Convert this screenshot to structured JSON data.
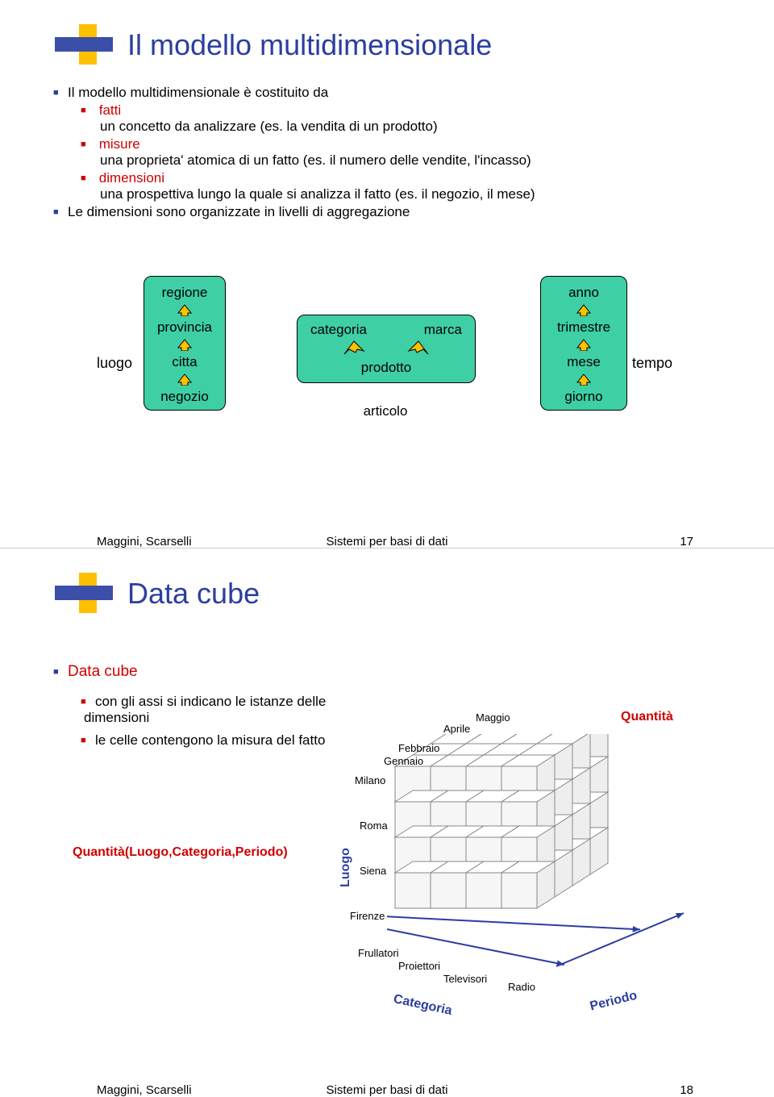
{
  "footer": {
    "left": "Maggini, Scarselli",
    "center": "Sistemi per basi di dati"
  },
  "slide1": {
    "title": "Il modello multidimensionale",
    "page": "17",
    "intro": "Il modello multidimensionale è costituito da",
    "items": {
      "fatti": {
        "label": "fatti",
        "desc": "un concetto da analizzare (es. la vendita di un prodotto)"
      },
      "misure": {
        "label": "misure",
        "desc": "una proprieta' atomica di un fatto (es. il numero delle vendite, l'incasso)"
      },
      "dimensioni": {
        "label": "dimensioni",
        "desc": "una prospettiva lungo la  quale si analizza il fatto (es. il negozio, il mese)"
      }
    },
    "levels_line": "Le dimensioni sono organizzate in livelli di aggregazione",
    "dim_luogo": {
      "sidelabel": "luogo",
      "levels": [
        "regione",
        "provincia",
        "citta",
        "negozio"
      ]
    },
    "dim_prod": {
      "top_left": "categoria",
      "top_right": "marca",
      "bottom": "prodotto",
      "below": "articolo"
    },
    "dim_tempo": {
      "sidelabel": "tempo",
      "levels": [
        "anno",
        "trimestre",
        "mese",
        "giorno"
      ]
    }
  },
  "slide2": {
    "title": "Data cube",
    "page": "18",
    "heading": "Data cube",
    "p1": "con gli assi si indicano le istanze delle  dimensioni",
    "p2": "le celle contengono la misura del fatto",
    "fn_label": "Quantità(Luogo,Categoria,Periodo)",
    "qty": "Quantità",
    "axes": {
      "luogo": "Luogo",
      "categoria": "Categoria",
      "periodo": "Periodo"
    },
    "months": [
      "Gennaio",
      "Febbraio",
      "Aprile",
      "Maggio"
    ],
    "cities": [
      "Milano",
      "Roma",
      "Siena",
      "Firenze"
    ],
    "cats": [
      "Frullatori",
      "Proiettori",
      "Televisori",
      "Radio"
    ],
    "cube_style": {
      "cell_size": 44,
      "depth_step_x": 22,
      "depth_step_y": -14,
      "nx": 4,
      "ny": 4,
      "nz": 4,
      "face_fill": "#f6f6f6",
      "face_stroke": "#888888",
      "axis_color": "#2b3ea0",
      "arrow_fill": "#ffc000"
    }
  }
}
